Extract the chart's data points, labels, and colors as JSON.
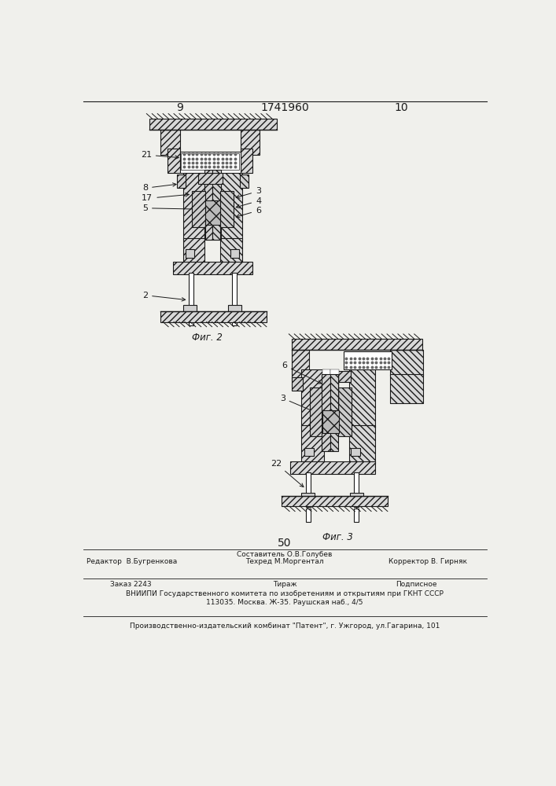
{
  "page_num_left": "9",
  "page_num_center": "1741960",
  "page_num_right": "10",
  "fig2_label": "Фиг. 2",
  "fig3_label": "Фиг. 3",
  "page_number_bottom": "50",
  "line1_col1": "Редактор  В.Бугренкова",
  "line1_col2": "Составитель О.В.Голубев",
  "line1_col3": "Техред М.Моргентал",
  "line1_col4": "Корректор В. Гирняк",
  "line2_col1": "Заказ 2243",
  "line2_col2": "Тираж",
  "line2_col3": "Подписное",
  "line3": "ВНИИПИ Государственного комитета по изобретениям и открытиям при ГКНТ СССР",
  "line4": "113035. Москва. Ж-35. Раушская наб., 4/5",
  "line5": "Производственно-издательский комбинат \"Патент\", г. Ужгород, ул.Гагарина, 101",
  "bg_color": "#f0f0ec",
  "line_color": "#1a1a1a"
}
